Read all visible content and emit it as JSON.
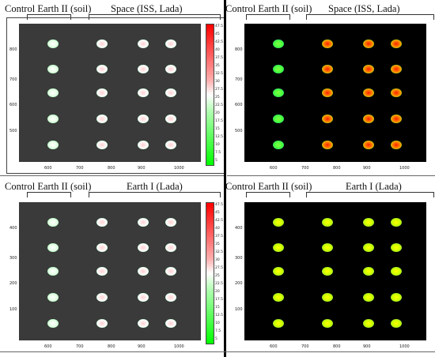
{
  "top": {
    "left_headers": [
      {
        "text": "Control Earth II (soil)"
      },
      {
        "text": "Space (ISS, Lada)"
      }
    ],
    "right_headers": [
      {
        "text": "Control Earth II (soil)"
      },
      {
        "text": "Space (ISS, Lada)"
      }
    ],
    "y_ticks": [
      "800",
      "700",
      "600",
      "500"
    ],
    "x_ticks": [
      "600",
      "700",
      "800",
      "900",
      "1000"
    ]
  },
  "bottom": {
    "left_headers": [
      {
        "text": "Control Earth II (soil)"
      },
      {
        "text": "Earth I  (Lada)"
      }
    ],
    "right_headers": [
      {
        "text": "Control Earth II (soil)"
      },
      {
        "text": "Earth I  (Lada)"
      }
    ],
    "y_ticks": [
      "400",
      "300",
      "200",
      "100"
    ],
    "x_ticks": [
      "600",
      "700",
      "800",
      "900",
      "1000"
    ]
  },
  "colorbar_ticks": [
    "47.5",
    "45",
    "42.5",
    "40",
    "37.5",
    "35",
    "32.5",
    "30",
    "27.5",
    "25",
    "22.5",
    "20",
    "17.5",
    "15",
    "12.5",
    "10",
    "7.5",
    "5"
  ]
}
